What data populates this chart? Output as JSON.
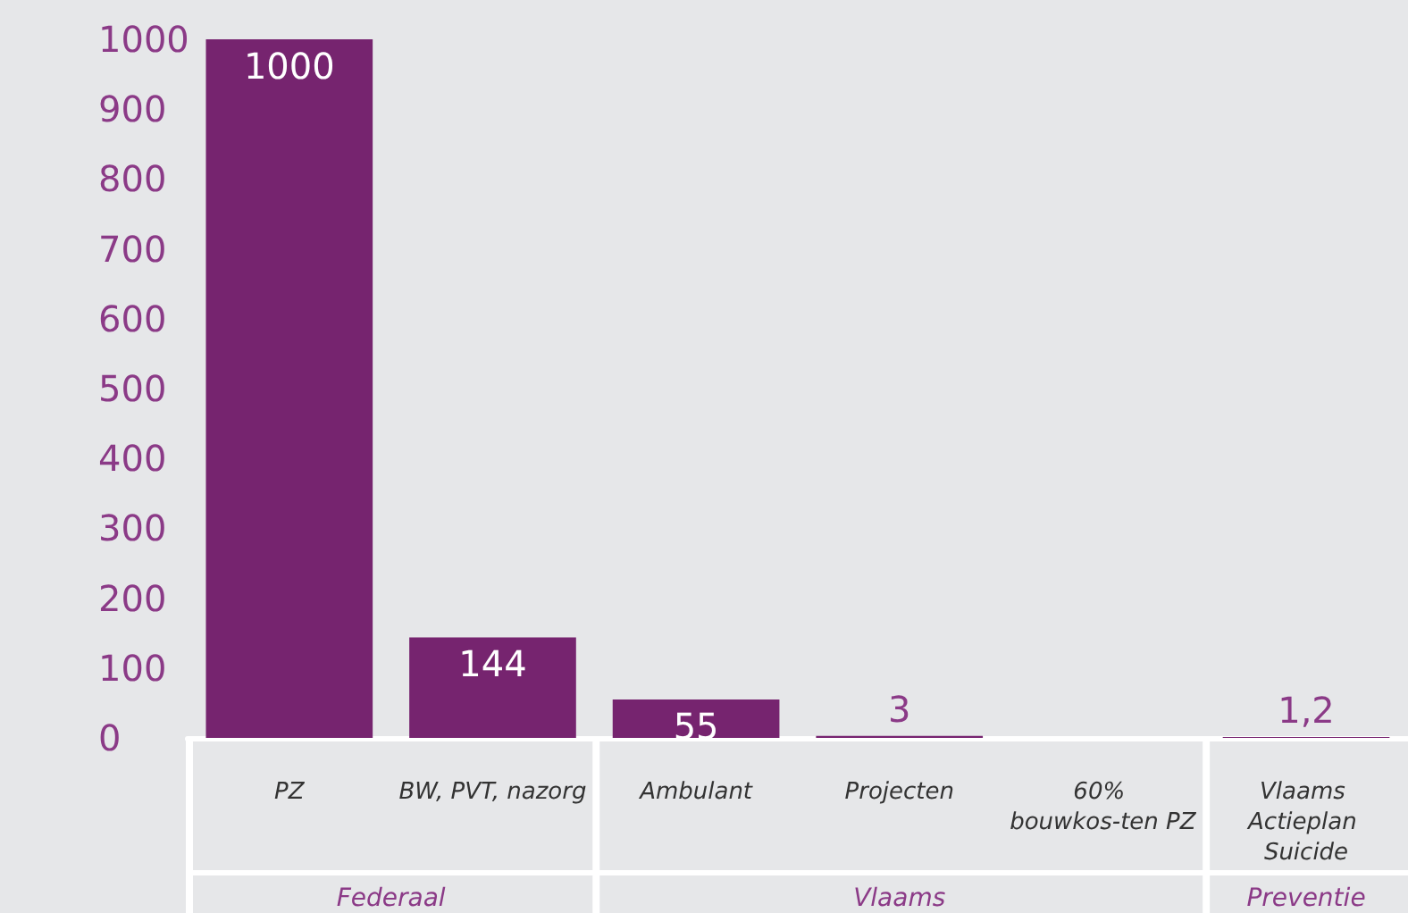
{
  "chart_data": {
    "type": "bar",
    "categories": [
      "PZ",
      "BW, PVT, nazorg",
      "Ambulant",
      "Projecten",
      "60% bouwkos-ten PZ",
      "Vlaams Actieplan Suicide"
    ],
    "values": [
      1000,
      144,
      55,
      3,
      null,
      1.2
    ],
    "value_labels": [
      "1000",
      "144",
      "55",
      "3",
      null,
      "1,2"
    ],
    "color": "#76246f",
    "ylim": [
      0,
      1000
    ],
    "yticks": [
      0,
      100,
      200,
      300,
      400,
      500,
      600,
      700,
      800,
      900,
      1000
    ],
    "grid": false,
    "annotations": [
      "Federaal",
      "Vlaams",
      "Preventie"
    ]
  }
}
